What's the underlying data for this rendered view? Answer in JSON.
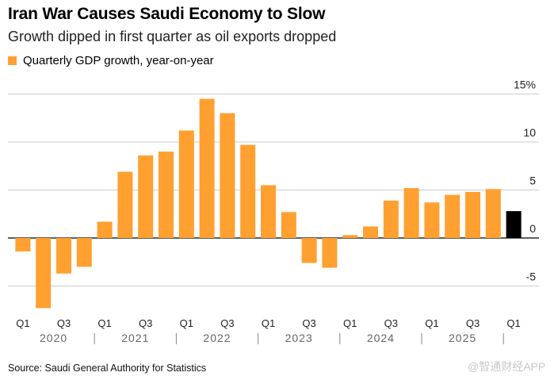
{
  "header": {
    "title": "Iran War Causes Saudi Economy to Slow",
    "subtitle": "Growth dipped in first quarter as oil exports dropped"
  },
  "legend": {
    "label": "Quarterly GDP growth, year-on-year"
  },
  "footer": {
    "source": "Source: Saudi General Authority for Statistics",
    "watermark": "@智通财经APP"
  },
  "colors": {
    "bar": "#ffa030",
    "latest": "#000000",
    "grid": "#cccccc"
  },
  "chart_data": {
    "type": "bar",
    "title": "Iran War Causes Saudi Economy to Slow",
    "subtitle": "Growth dipped in first quarter as oil exports dropped",
    "ylabel": "Quarterly GDP growth, year-on-year",
    "ylim": [
      -7.5,
      15
    ],
    "yticks": [
      {
        "value": 15,
        "label": "15%"
      },
      {
        "value": 10,
        "label": "10"
      },
      {
        "value": 5,
        "label": "5"
      },
      {
        "value": 0,
        "label": "0"
      },
      {
        "value": -5,
        "label": "-5"
      }
    ],
    "quarters": [
      "2020 Q1",
      "2020 Q2",
      "2020 Q3",
      "2020 Q4",
      "2021 Q1",
      "2021 Q2",
      "2021 Q3",
      "2021 Q4",
      "2022 Q1",
      "2022 Q2",
      "2022 Q3",
      "2022 Q4",
      "2023 Q1",
      "2023 Q2",
      "2023 Q3",
      "2023 Q4",
      "2024 Q1",
      "2024 Q2",
      "2024 Q3",
      "2024 Q4",
      "2025 Q1",
      "2025 Q2",
      "2025 Q3",
      "2025 Q4",
      "2026 Q1"
    ],
    "values": [
      -1.4,
      -7.3,
      -3.7,
      -3.0,
      1.7,
      6.9,
      8.6,
      9.0,
      11.2,
      14.5,
      13.0,
      9.7,
      5.5,
      2.7,
      -2.6,
      -3.1,
      0.3,
      1.2,
      3.9,
      5.2,
      3.7,
      4.5,
      4.8,
      5.1,
      2.8
    ],
    "highlight_index": 24,
    "x_tick_labels": [
      {
        "index": 0,
        "label": "Q1"
      },
      {
        "index": 2,
        "label": "Q3"
      },
      {
        "index": 4,
        "label": "Q1"
      },
      {
        "index": 6,
        "label": "Q3"
      },
      {
        "index": 8,
        "label": "Q1"
      },
      {
        "index": 10,
        "label": "Q3"
      },
      {
        "index": 12,
        "label": "Q1"
      },
      {
        "index": 14,
        "label": "Q3"
      },
      {
        "index": 16,
        "label": "Q1"
      },
      {
        "index": 18,
        "label": "Q3"
      },
      {
        "index": 20,
        "label": "Q1"
      },
      {
        "index": 22,
        "label": "Q3"
      },
      {
        "index": 24,
        "label": "Q1"
      }
    ],
    "years": [
      {
        "label": "2020",
        "start": 0
      },
      {
        "label": "2021",
        "start": 4
      },
      {
        "label": "2022",
        "start": 8
      },
      {
        "label": "2023",
        "start": 12
      },
      {
        "label": "2024",
        "start": 16
      },
      {
        "label": "2025",
        "start": 20
      }
    ]
  }
}
